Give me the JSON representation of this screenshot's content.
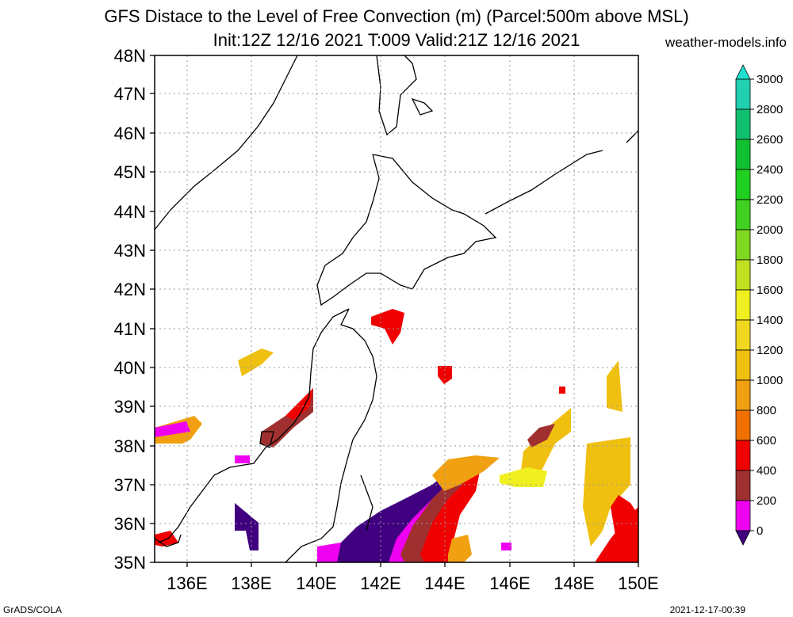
{
  "title_line1": "GFS Distace to the Level of Free Convection (m) (Parcel:500m above MSL)",
  "title_line2": "Init:12Z 12/16 2021 T:009 Valid:21Z 12/16 2021",
  "site": "weather-models.info",
  "footer_left": "GrADS/COLA",
  "footer_right": "2021-12-17-00:39",
  "lat_labels": [
    "48N",
    "47N",
    "46N",
    "45N",
    "44N",
    "43N",
    "42N",
    "41N",
    "40N",
    "39N",
    "38N",
    "37N",
    "36N",
    "35N"
  ],
  "lon_labels": [
    "136E",
    "138E",
    "140E",
    "142E",
    "144E",
    "146E",
    "148E",
    "150E"
  ],
  "colorbar": {
    "labels": [
      "3000",
      "2800",
      "2600",
      "2400",
      "2200",
      "2000",
      "1800",
      "1600",
      "1400",
      "1200",
      "1000",
      "800",
      "600",
      "400",
      "200",
      "0"
    ],
    "colors": [
      "#20e0d0",
      "#20d0b0",
      "#10c070",
      "#10c030",
      "#20d020",
      "#40d020",
      "#80d820",
      "#c0e020",
      "#f0f020",
      "#f0d820",
      "#f0c010",
      "#f0a010",
      "#f07000",
      "#f00000",
      "#a03030",
      "#f000f0",
      "#400080"
    ]
  }
}
